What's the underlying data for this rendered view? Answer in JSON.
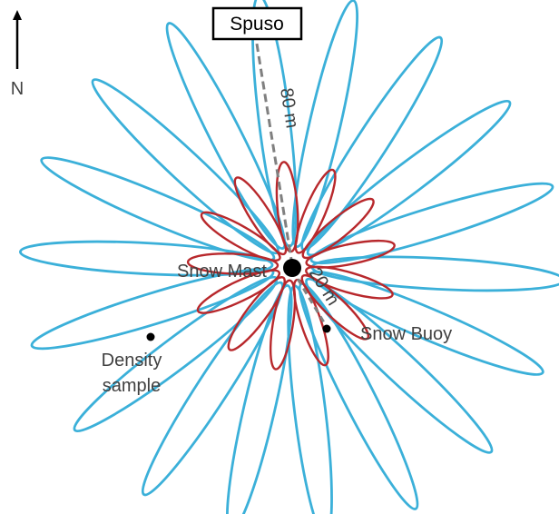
{
  "north_label": "N",
  "station_label": "Spuso",
  "long_distance_label": "80 m",
  "short_distance_label": "20 m",
  "mast_label": "Snow Mast",
  "buoy_label": "Snow Buoy",
  "density_label_line1": "Density",
  "density_label_line2": "sample",
  "colors": {
    "outer_loops": "#3bb0d9",
    "inner_loops": "#b8282c",
    "dashed_line": "#808080",
    "marker": "#000000",
    "text": "#404040"
  },
  "outer_loop_count": 18,
  "inner_loop_count": 13
}
